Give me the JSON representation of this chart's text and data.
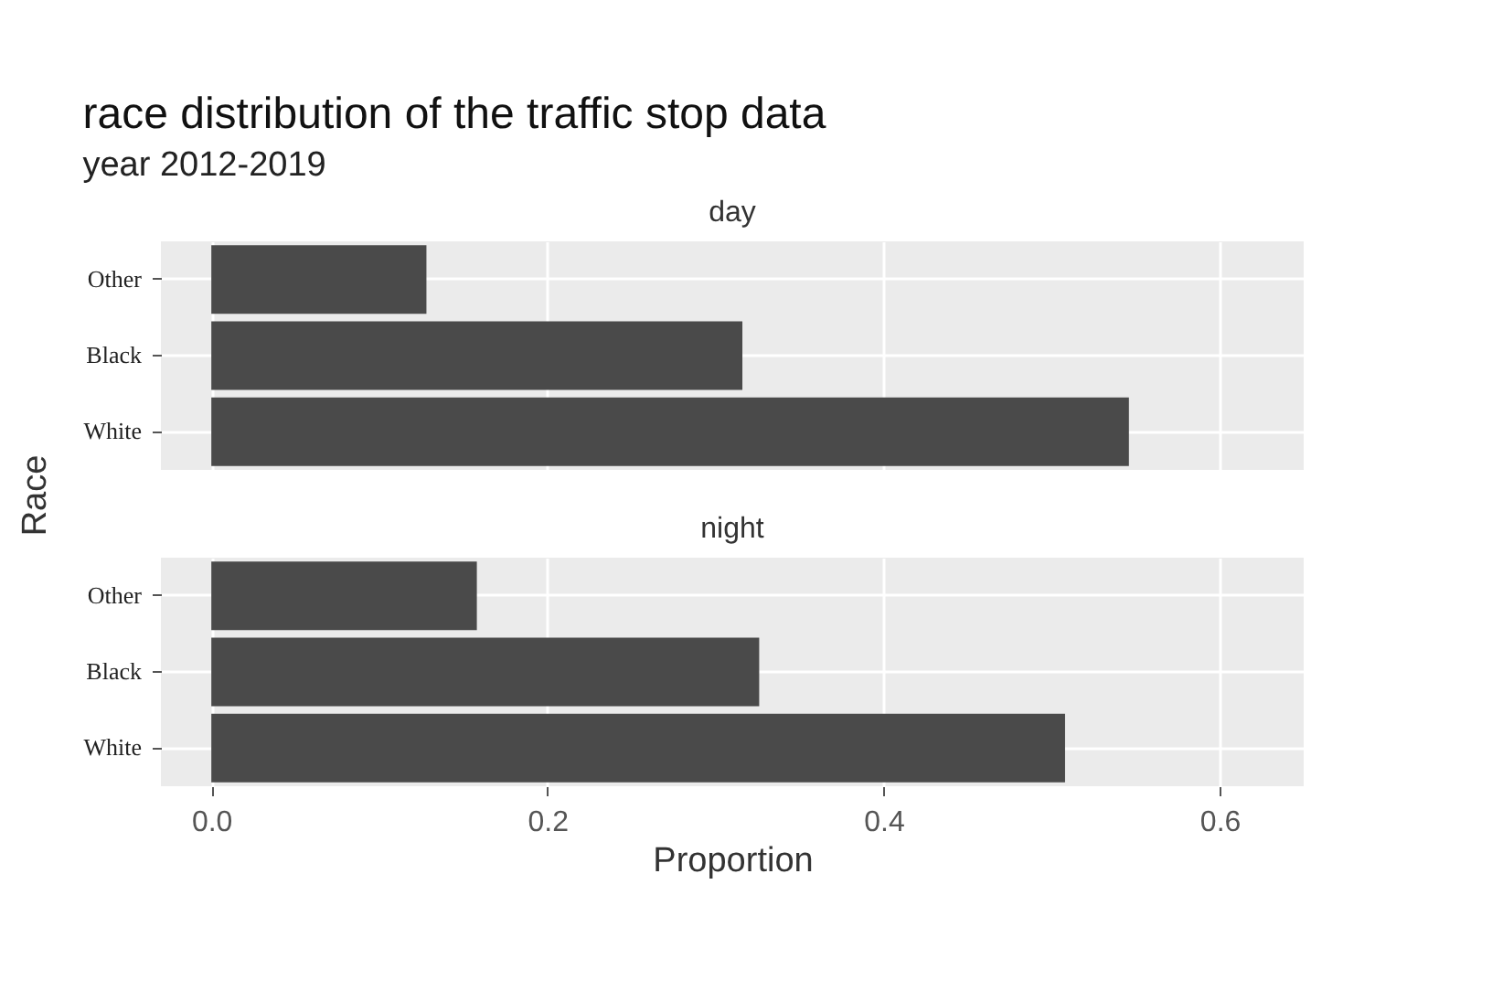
{
  "chart_data": [
    {
      "type": "bar",
      "orientation": "horizontal",
      "title": "race distribution of the traffic stop data",
      "subtitle": "year 2012-2019",
      "ylabel": "Race",
      "annotations": [
        "day"
      ],
      "categories": [
        "Other",
        "Black",
        "White"
      ],
      "values": [
        0.128,
        0.316,
        0.546
      ],
      "color": "#4a4a4a",
      "xlim": [
        -0.03,
        0.65
      ],
      "xticks": [
        0.0,
        0.2,
        0.4,
        0.6
      ],
      "grid": true,
      "tick_labels": "y"
    },
    {
      "type": "bar",
      "orientation": "horizontal",
      "xlabel": "Proportion",
      "annotations": [
        "night"
      ],
      "categories": [
        "Other",
        "Black",
        "White"
      ],
      "values": [
        0.158,
        0.326,
        0.508
      ],
      "color": "#4a4a4a",
      "xlim": [
        -0.03,
        0.65
      ],
      "xticks": [
        {
          "value": 0,
          "label": "0.0"
        },
        0.2,
        0.4,
        0.6
      ],
      "grid": true
    }
  ]
}
